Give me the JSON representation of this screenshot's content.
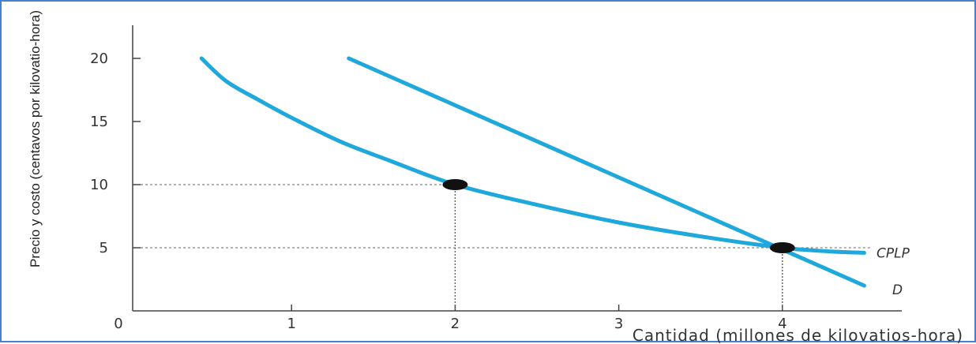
{
  "chart_data": {
    "type": "line",
    "title": "",
    "xlabel": "Cantidad (millones de kilovatios-hora)",
    "ylabel": "Precio y costo (centavos por kilovatio-hora)",
    "xlim": [
      0,
      5
    ],
    "ylim": [
      0,
      20
    ],
    "x_ticks": [
      {
        "value": 0,
        "label": "0"
      },
      {
        "value": 1,
        "label": "1"
      },
      {
        "value": 2,
        "label": "2"
      },
      {
        "value": 3,
        "label": "3"
      },
      {
        "value": 4,
        "label": "4"
      }
    ],
    "y_ticks": [
      {
        "value": 5,
        "label": "5"
      },
      {
        "value": 10,
        "label": "10"
      },
      {
        "value": 15,
        "label": "15"
      },
      {
        "value": 20,
        "label": "20"
      }
    ],
    "grid": false,
    "series": [
      {
        "name": "CPLP",
        "color": "#1ea8dc",
        "x": [
          0.45,
          0.6,
          0.8,
          1.0,
          1.3,
          1.6,
          2.0,
          2.5,
          3.0,
          3.5,
          4.0,
          4.3,
          4.5
        ],
        "y": [
          20,
          18.2,
          16.7,
          15.3,
          13.4,
          11.9,
          10,
          8.4,
          7.0,
          5.9,
          5.0,
          4.7,
          4.6
        ]
      },
      {
        "name": "D",
        "color": "#1ea8dc",
        "x": [
          1.35,
          4.5
        ],
        "y": [
          20,
          2.0
        ]
      }
    ],
    "points": [
      {
        "x": 2,
        "y": 10
      },
      {
        "x": 4,
        "y": 5
      }
    ],
    "dashed_guides": [
      {
        "x": 2,
        "y": 10
      },
      {
        "x": 4,
        "y": 5
      }
    ]
  }
}
